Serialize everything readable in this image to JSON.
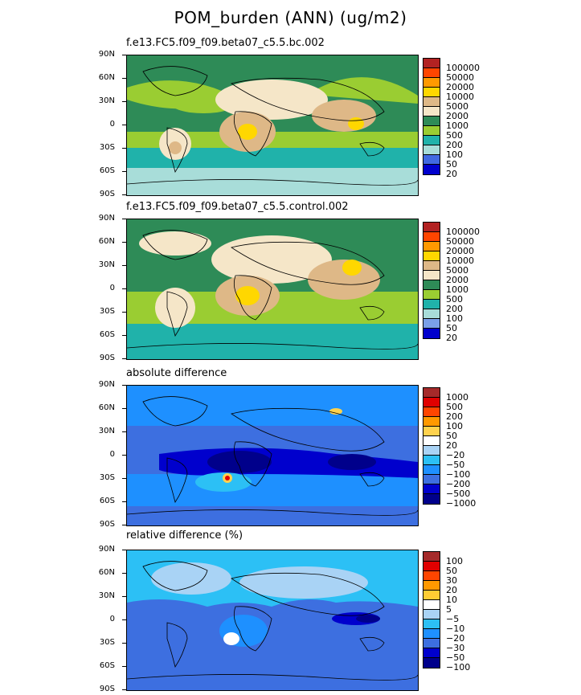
{
  "title": "POM_burden (ANN) (ug/m2)",
  "lat_labels": [
    "90N",
    "60N",
    "30N",
    "0",
    "30S",
    "60S",
    "90S"
  ],
  "colors": {
    "land_line": "#000000",
    "background": "#ffffff"
  },
  "panels": [
    {
      "id": "bc",
      "title": "f.e13.FC5.f09_f09.beta07_c5.5.bc.002",
      "base_color": "#2a9a4f",
      "levels": [
        "100000",
        "50000",
        "20000",
        "10000",
        "5000",
        "2000",
        "1000",
        "500",
        "200",
        "100",
        "50",
        "20"
      ],
      "colors": [
        "#b22222",
        "#ff4500",
        "#ff9900",
        "#ffd700",
        "#deb887",
        "#f5e6c8",
        "#2e8b57",
        "#9acd32",
        "#20b2aa",
        "#a8ddd9",
        "#4169e1",
        "#0000cd"
      ]
    },
    {
      "id": "control",
      "title": "f.e13.FC5.f09_f09.beta07_c5.5.control.002",
      "base_color": "#9acd32",
      "levels": [
        "100000",
        "50000",
        "20000",
        "10000",
        "5000",
        "2000",
        "1000",
        "500",
        "200",
        "100",
        "50",
        "20"
      ],
      "colors": [
        "#b22222",
        "#ff4500",
        "#ff9900",
        "#ffd700",
        "#deb887",
        "#f5e6c8",
        "#2e8b57",
        "#9acd32",
        "#20b2aa",
        "#a8ddd9",
        "#7a9fe8",
        "#0000cd"
      ]
    },
    {
      "id": "absdiff",
      "title": "absolute difference",
      "base_color": "#3d6fe0",
      "levels": [
        "1000",
        "500",
        "200",
        "100",
        "50",
        "20",
        "−20",
        "−50",
        "−100",
        "−200",
        "−500",
        "−1000"
      ],
      "colors": [
        "#a52a2a",
        "#e00000",
        "#ff4500",
        "#ff9900",
        "#ffd24d",
        "#ffffff",
        "#a9d3f5",
        "#2cc0f5",
        "#1e90ff",
        "#3d6fe0",
        "#0000cd",
        "#00008b"
      ]
    },
    {
      "id": "reldiff",
      "title": "relative difference (%)",
      "base_color": "#3d6fe0",
      "levels": [
        "100",
        "50",
        "30",
        "20",
        "10",
        "5",
        "−5",
        "−10",
        "−20",
        "−30",
        "−50",
        "−100"
      ],
      "colors": [
        "#a52a2a",
        "#e00000",
        "#ff4500",
        "#ff9900",
        "#ffcc33",
        "#ffffff",
        "#a9d3f5",
        "#2cc0f5",
        "#1e90ff",
        "#3d6fe0",
        "#0000cd",
        "#00008b"
      ]
    }
  ]
}
